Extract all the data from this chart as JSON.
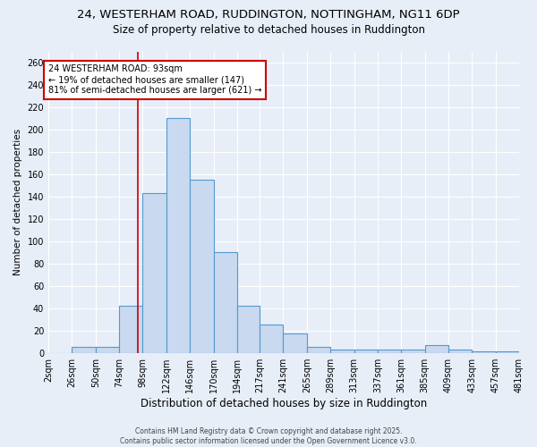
{
  "title_line1": "24, WESTERHAM ROAD, RUDDINGTON, NOTTINGHAM, NG11 6DP",
  "title_line2": "Size of property relative to detached houses in Ruddington",
  "xlabel": "Distribution of detached houses by size in Ruddington",
  "ylabel": "Number of detached properties",
  "bin_labels": [
    "2sqm",
    "26sqm",
    "50sqm",
    "74sqm",
    "98sqm",
    "122sqm",
    "146sqm",
    "170sqm",
    "194sqm",
    "217sqm",
    "241sqm",
    "265sqm",
    "289sqm",
    "313sqm",
    "337sqm",
    "361sqm",
    "385sqm",
    "409sqm",
    "433sqm",
    "457sqm",
    "481sqm"
  ],
  "bin_edges": [
    2,
    26,
    50,
    74,
    98,
    122,
    146,
    170,
    194,
    217,
    241,
    265,
    289,
    313,
    337,
    361,
    385,
    409,
    433,
    457,
    481
  ],
  "bar_heights": [
    0,
    5,
    5,
    42,
    143,
    210,
    155,
    90,
    42,
    25,
    17,
    5,
    3,
    3,
    3,
    3,
    7,
    3,
    1,
    1
  ],
  "bar_color": "#c8d9f0",
  "bar_edge_color": "#5599cc",
  "property_size": 93,
  "annotation_line1": "24 WESTERHAM ROAD: 93sqm",
  "annotation_line2": "← 19% of detached houses are smaller (147)",
  "annotation_line3": "81% of semi-detached houses are larger (621) →",
  "annotation_box_color": "white",
  "annotation_box_edge_color": "#cc0000",
  "vline_color": "#cc0000",
  "footer_line1": "Contains HM Land Registry data © Crown copyright and database right 2025.",
  "footer_line2": "Contains public sector information licensed under the Open Government Licence v3.0.",
  "background_color": "#e8eef8",
  "ylim": [
    0,
    270
  ],
  "yticks": [
    0,
    20,
    40,
    60,
    80,
    100,
    120,
    140,
    160,
    180,
    200,
    220,
    240,
    260
  ]
}
